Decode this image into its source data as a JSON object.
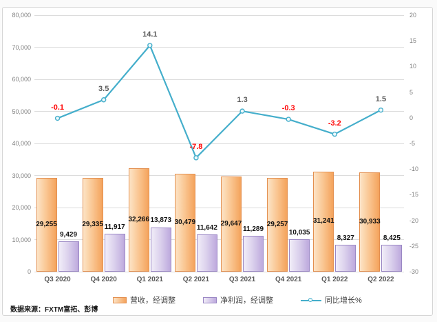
{
  "chart": {
    "source_note": "数据来源：FXTM富拓、彭博"
  },
  "chart_data": {
    "type": "combo-bar-line",
    "title": "",
    "categories": [
      "Q3 2020",
      "Q4 2020",
      "Q1 2021",
      "Q2 2021",
      "Q3 2021",
      "Q4 2021",
      "Q1 2022",
      "Q2 2022"
    ],
    "series": [
      {
        "name": "营收，经调整",
        "type": "bar",
        "axis": "left",
        "values": [
          29255,
          29335,
          32266,
          30479,
          29647,
          29257,
          31241,
          30933
        ],
        "fill_gradient": [
          "#FCE4C7",
          "#F4A35C"
        ],
        "border_color": "#E38F4F"
      },
      {
        "name": "净利润，经调整",
        "type": "bar",
        "axis": "left",
        "values": [
          9429,
          11917,
          13873,
          11642,
          11289,
          10035,
          8327,
          8425
        ],
        "fill_gradient": [
          "#F1EDF8",
          "#BDA9DD"
        ],
        "border_color": "#9A87C4"
      },
      {
        "name": "同比增长%",
        "type": "line",
        "axis": "right",
        "values": [
          -0.1,
          3.5,
          14.1,
          -7.8,
          1.3,
          -0.3,
          -3.2,
          1.5
        ],
        "color": "#44AECB",
        "label_color_positive": "#595959",
        "label_color_negative": "#FF0000"
      }
    ],
    "left_axis": {
      "min": 0,
      "max": 80000,
      "step": 10000
    },
    "right_axis": {
      "min": -30,
      "max": 20,
      "step": 5
    },
    "grid": true,
    "legend_position": "bottom"
  }
}
